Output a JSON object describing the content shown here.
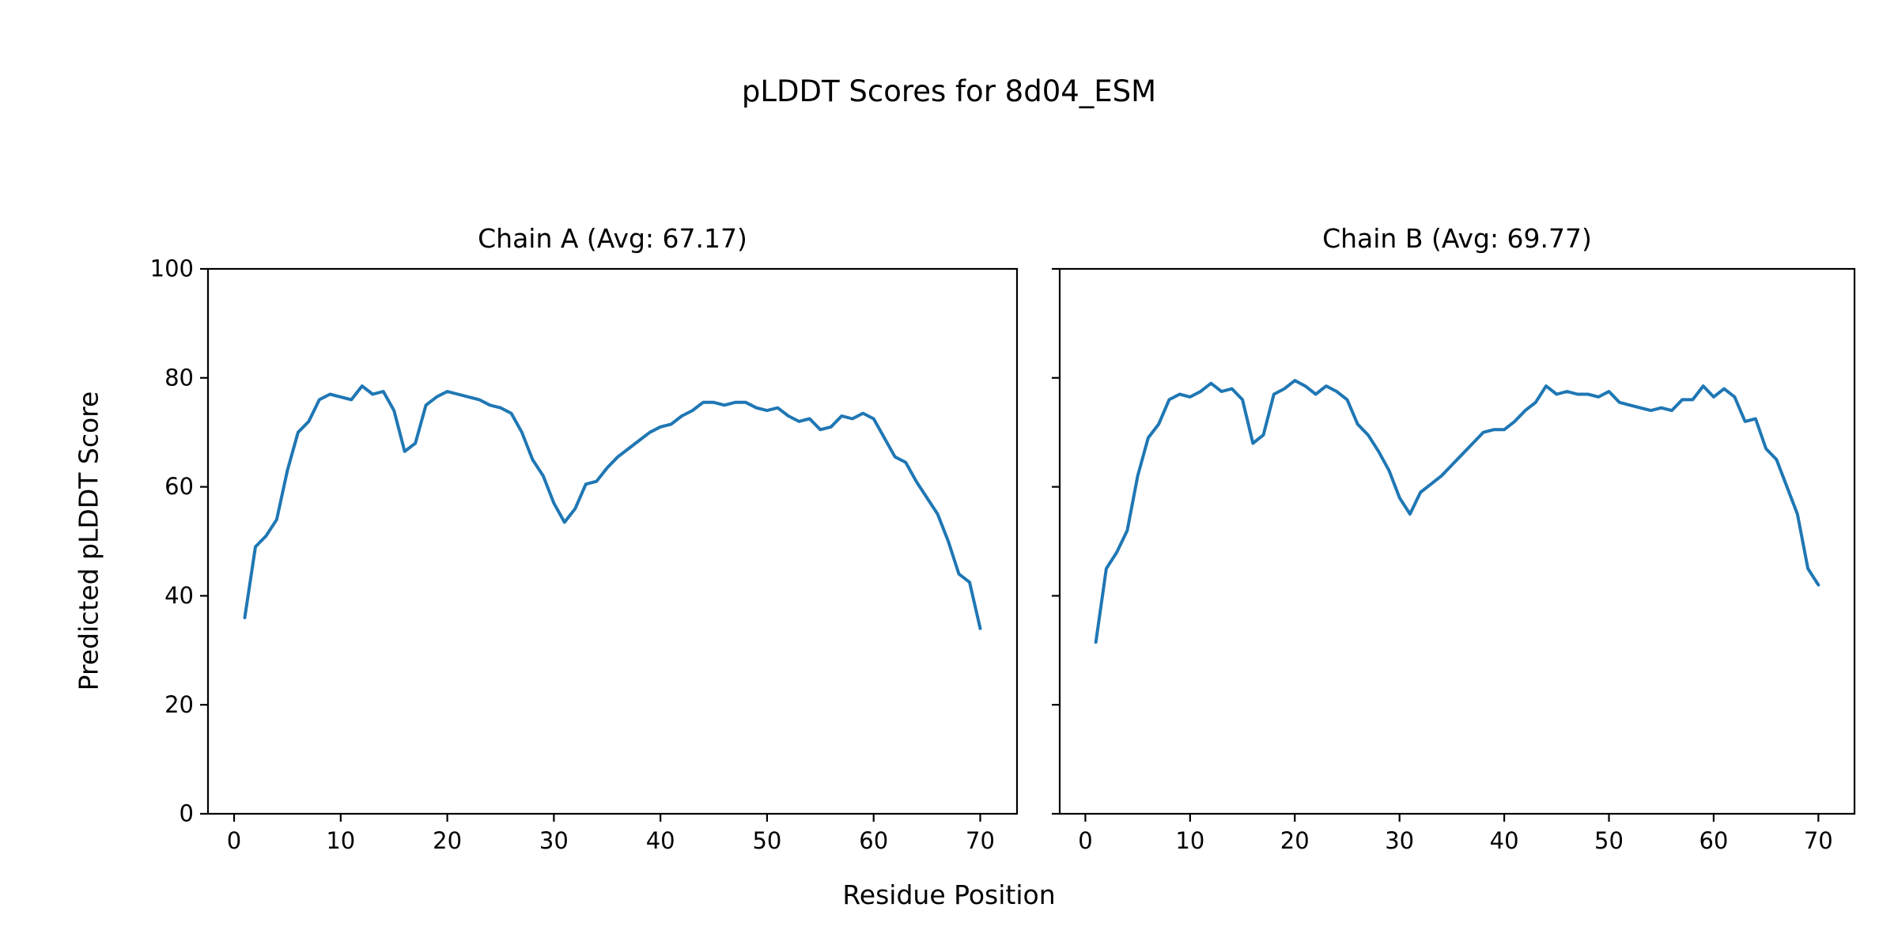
{
  "figure": {
    "title": "pLDDT Scores for 8d04_ESM",
    "xlabel": "Residue Position",
    "ylabel": "Predicted pLDDT Score"
  },
  "chart_data": [
    {
      "type": "line",
      "title": "Chain A (Avg: 67.17)",
      "avg": 67.17,
      "xlim": [
        -2.45,
        73.45
      ],
      "ylim": [
        0,
        100
      ],
      "xticks": [
        0,
        10,
        20,
        30,
        40,
        50,
        60,
        70
      ],
      "yticks": [
        0,
        20,
        40,
        60,
        80,
        100
      ],
      "show_ytick_labels": true,
      "grid": false,
      "legend": false,
      "series": [
        {
          "name": "Chain A pLDDT",
          "color": "#1f77b4",
          "x": [
            1,
            2,
            3,
            4,
            5,
            6,
            7,
            8,
            9,
            10,
            11,
            12,
            13,
            14,
            15,
            16,
            17,
            18,
            19,
            20,
            21,
            22,
            23,
            24,
            25,
            26,
            27,
            28,
            29,
            30,
            31,
            32,
            33,
            34,
            35,
            36,
            37,
            38,
            39,
            40,
            41,
            42,
            43,
            44,
            45,
            46,
            47,
            48,
            49,
            50,
            51,
            52,
            53,
            54,
            55,
            56,
            57,
            58,
            59,
            60,
            61,
            62,
            63,
            64,
            65,
            66,
            67,
            68,
            69,
            70
          ],
          "values": [
            36,
            49,
            51,
            54,
            63,
            70,
            72,
            76,
            77,
            76.5,
            76,
            78.5,
            77,
            77.5,
            74,
            66.5,
            68,
            75,
            76.5,
            77.5,
            77,
            76.5,
            76,
            75,
            74.5,
            73.5,
            70,
            65,
            62,
            57,
            53.5,
            56,
            60.5,
            61,
            63.5,
            65.5,
            67,
            68.5,
            70,
            71,
            71.5,
            73,
            74,
            75.5,
            75.5,
            75,
            75.5,
            75.5,
            74.5,
            74,
            74.5,
            73,
            72,
            72.5,
            70.5,
            71,
            73,
            72.5,
            73.5,
            72.5,
            69,
            65.5,
            64.5,
            61,
            58,
            55,
            50,
            44,
            42.5,
            34
          ]
        }
      ]
    },
    {
      "type": "line",
      "title": "Chain B (Avg: 69.77)",
      "avg": 69.77,
      "xlim": [
        -2.45,
        73.45
      ],
      "ylim": [
        0,
        100
      ],
      "xticks": [
        0,
        10,
        20,
        30,
        40,
        50,
        60,
        70
      ],
      "yticks": [
        0,
        20,
        40,
        60,
        80,
        100
      ],
      "show_ytick_labels": false,
      "grid": false,
      "legend": false,
      "series": [
        {
          "name": "Chain B pLDDT",
          "color": "#1f77b4",
          "x": [
            1,
            2,
            3,
            4,
            5,
            6,
            7,
            8,
            9,
            10,
            11,
            12,
            13,
            14,
            15,
            16,
            17,
            18,
            19,
            20,
            21,
            22,
            23,
            24,
            25,
            26,
            27,
            28,
            29,
            30,
            31,
            32,
            33,
            34,
            35,
            36,
            37,
            38,
            39,
            40,
            41,
            42,
            43,
            44,
            45,
            46,
            47,
            48,
            49,
            50,
            51,
            52,
            53,
            54,
            55,
            56,
            57,
            58,
            59,
            60,
            61,
            62,
            63,
            64,
            65,
            66,
            67,
            68,
            69,
            70
          ],
          "values": [
            31.5,
            45,
            48,
            52,
            62,
            69,
            71.5,
            76,
            77,
            76.5,
            77.5,
            79,
            77.5,
            78,
            76,
            68,
            69.5,
            77,
            78,
            79.5,
            78.5,
            77,
            78.5,
            77.5,
            76,
            71.5,
            69.5,
            66.5,
            63,
            58,
            55,
            59,
            60.5,
            62,
            64,
            66,
            68,
            70,
            70.5,
            70.5,
            72,
            74,
            75.5,
            78.5,
            77,
            77.5,
            77,
            77,
            76.5,
            77.5,
            75.5,
            75,
            74.5,
            74,
            74.5,
            74,
            76,
            76,
            78.5,
            76.5,
            78,
            76.5,
            72,
            72.5,
            67,
            65,
            60,
            55,
            45,
            42
          ]
        }
      ]
    }
  ]
}
